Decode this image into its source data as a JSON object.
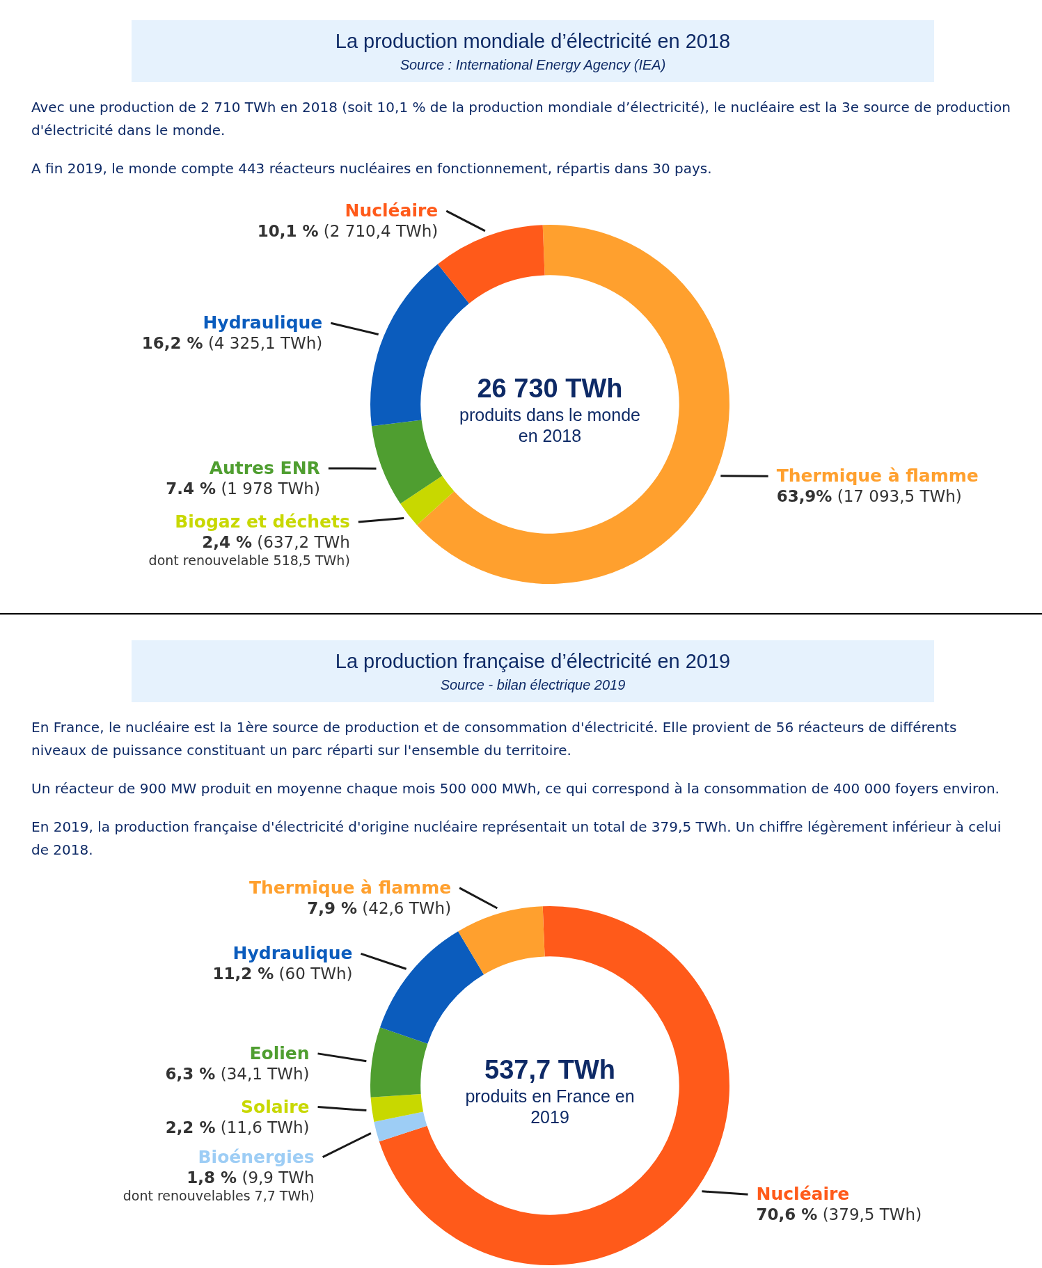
{
  "chart_data": [
    {
      "type": "donut",
      "title": "La production mondiale d’électricité en 2018",
      "subtitle": "Source : International Energy Agency (IEA)",
      "annotations": [
        "Avec une production de 2 710 TWh en 2018 (soit 10,1 % de la production mondiale d’électricité), le nucléaire est la 3e source de production d'électricité dans le monde.",
        "A fin 2019, le monde compte 443 réacteurs nucléaires en fonctionnement, répartis dans 30 pays.",
        "26 730 TWh",
        "produits dans le monde en 2018",
        {
          "text": "dont renouvelable 518,5 TWh)",
          "x": "Biogaz et déchets"
        }
      ],
      "categories": [
        "Thermique à flamme",
        "Biogaz et déchets",
        "Autres ENR",
        "Hydraulique",
        "Nucléaire"
      ],
      "values": [
        63.9,
        2.4,
        7.4,
        16.2,
        10.1
      ],
      "colors": [
        "#ffa02e",
        "#c8d800",
        "#4f9e30",
        "#0b5cbd",
        "#ff5a1a"
      ],
      "value_labels": [
        "63,9%  (17 093,5 TWh)",
        "2,4 %  (637,2 TWh",
        "7.4 % (1 978 TWh)",
        "16,2 % (4 325,1 TWh)",
        "10,1 % (2 710,4 TWh)"
      ]
    },
    {
      "type": "donut",
      "title": "La production française d’électricité en 2019",
      "subtitle": "Source - bilan électrique 2019",
      "annotations": [
        "En France, le nucléaire est la 1ère source de production et de consommation d'électricité. Elle provient de 56 réacteurs de différents niveaux de puissance constituant un parc réparti sur l'ensemble du territoire.",
        "Un réacteur de 900 MW produit en moyenne chaque mois 500 000 MWh, ce qui correspond à la consommation de 400 000 foyers environ.",
        "En 2019, la production française d'électricité d'origine nucléaire représentait un total de 379,5 TWh. Un chiffre légèrement inférieur à celui de 2018.",
        "537,7 TWh",
        "produits en France en 2019",
        {
          "text": "dont renouvelables 7,7 TWh)",
          "x": "Bioénergies"
        }
      ],
      "categories": [
        "Nucléaire",
        "Bioénergies",
        "Solaire",
        "Eolien",
        "Hydraulique",
        "Thermique à flamme"
      ],
      "values": [
        70.6,
        1.8,
        2.2,
        6.3,
        11.2,
        7.9
      ],
      "colors": [
        "#ff5a1a",
        "#9dcdf5",
        "#c8d800",
        "#4f9e30",
        "#0b5cbd",
        "#ffa02e"
      ],
      "value_labels": [
        "70,6 % (379,5 TWh)",
        "1,8 % (9,9 TWh",
        "2,2 % (11,6 TWh)",
        "6,3 % (34,1 TWh)",
        "11,2 % (60 TWh)",
        "7,9 % (42,6 TWh)"
      ]
    }
  ]
}
